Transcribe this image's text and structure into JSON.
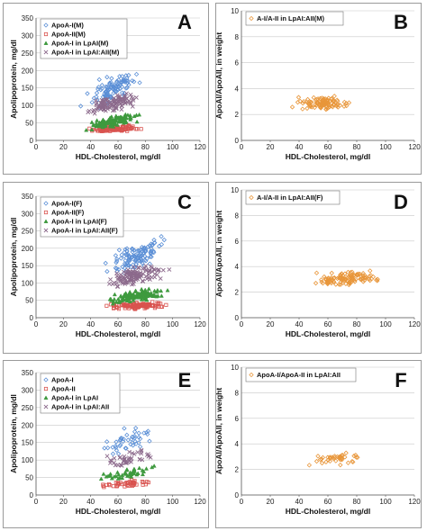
{
  "chart_data": [
    {
      "panel": "A",
      "type": "scatter",
      "xlabel": "HDL-Cholesterol, mg/dl",
      "ylabel": "Apolipoprotein, mg/dl",
      "xlim": [
        0,
        120
      ],
      "ylim": [
        0,
        350
      ],
      "xticks": [
        0,
        20,
        40,
        60,
        80,
        100,
        120
      ],
      "yticks": [
        0,
        50,
        100,
        150,
        200,
        250,
        300,
        350
      ],
      "legend_position": "top-left",
      "series": [
        {
          "name": "ApoA-I(M)",
          "color": "#5b8fd6",
          "marker": "diamond",
          "n": 110,
          "x_range": [
            22,
            90
          ],
          "y_at_x_min": 95,
          "y_slope": 1.5,
          "y_spread": 30,
          "seed": 11
        },
        {
          "name": "ApoA-II(M)",
          "color": "#d9534f",
          "marker": "square",
          "n": 110,
          "x_range": [
            22,
            90
          ],
          "y_at_x_min": 25,
          "y_slope": 0.22,
          "y_spread": 7,
          "seed": 12
        },
        {
          "name": "ApoA-I in LpAI(M)",
          "color": "#3e9a3e",
          "marker": "triangle",
          "n": 110,
          "x_range": [
            22,
            90
          ],
          "y_at_x_min": 28,
          "y_slope": 0.75,
          "y_spread": 12,
          "seed": 13
        },
        {
          "name": "ApoA-I in LpAI:AII(M)",
          "color": "#8c6a8c",
          "marker": "cross",
          "n": 110,
          "x_range": [
            22,
            90
          ],
          "y_at_x_min": 80,
          "y_slope": 0.75,
          "y_spread": 16,
          "seed": 14
        }
      ]
    },
    {
      "panel": "B",
      "type": "scatter",
      "xlabel": "HDL-Cholesterol, mg/dl",
      "ylabel": "ApoAI/ApoAII, in weight",
      "xlim": [
        0,
        120
      ],
      "ylim": [
        0,
        10
      ],
      "xticks": [
        0,
        20,
        40,
        60,
        80,
        100,
        120
      ],
      "yticks": [
        0,
        2,
        4,
        6,
        8,
        10
      ],
      "legend_position": "top-left",
      "series": [
        {
          "name": "A-I/A-II in LpAI:AII(M)",
          "color": "#e8963a",
          "marker": "diamond",
          "n": 110,
          "x_range": [
            25,
            88
          ],
          "y_at_x_min": 2.9,
          "y_slope": 0.0,
          "y_spread": 0.4,
          "seed": 15
        }
      ]
    },
    {
      "panel": "C",
      "type": "scatter",
      "xlabel": "HDL-Cholesterol, mg/dl",
      "ylabel": "Apolipoprotein, mg/dl",
      "xlim": [
        0,
        120
      ],
      "ylim": [
        0,
        350
      ],
      "xticks": [
        0,
        20,
        40,
        60,
        80,
        100,
        120
      ],
      "yticks": [
        0,
        50,
        100,
        150,
        200,
        250,
        300,
        350
      ],
      "legend_position": "top-left",
      "series": [
        {
          "name": "ApoA-I(F)",
          "color": "#5b8fd6",
          "marker": "diamond",
          "n": 120,
          "x_range": [
            35,
            112
          ],
          "y_at_x_min": 125,
          "y_slope": 1.3,
          "y_spread": 28,
          "seed": 21
        },
        {
          "name": "ApoA-II(F)",
          "color": "#d9534f",
          "marker": "square",
          "n": 120,
          "x_range": [
            35,
            112
          ],
          "y_at_x_min": 30,
          "y_slope": 0.12,
          "y_spread": 7,
          "seed": 22
        },
        {
          "name": "ApoA-I in LpAI(F)",
          "color": "#3e9a3e",
          "marker": "triangle",
          "n": 120,
          "x_range": [
            35,
            112
          ],
          "y_at_x_min": 40,
          "y_slope": 0.6,
          "y_spread": 12,
          "seed": 23
        },
        {
          "name": "ApoA-I in LpAI:AII(F)",
          "color": "#8c6a8c",
          "marker": "cross",
          "n": 120,
          "x_range": [
            35,
            112
          ],
          "y_at_x_min": 90,
          "y_slope": 0.75,
          "y_spread": 18,
          "seed": 24
        }
      ]
    },
    {
      "panel": "D",
      "type": "scatter",
      "xlabel": "HDL-Cholesterol, mg/dl",
      "ylabel": "ApoAI/ApoAII, in weight",
      "xlim": [
        0,
        120
      ],
      "ylim": [
        0,
        10
      ],
      "xticks": [
        0,
        20,
        40,
        60,
        80,
        100,
        120
      ],
      "yticks": [
        0,
        2,
        4,
        6,
        8,
        10
      ],
      "legend_position": "top-left",
      "series": [
        {
          "name": "A-I/A-II in LpAI:AII(F)",
          "color": "#e8963a",
          "marker": "diamond",
          "n": 120,
          "x_range": [
            33,
            112
          ],
          "y_at_x_min": 2.8,
          "y_slope": 0.006,
          "y_spread": 0.4,
          "seed": 25
        }
      ]
    },
    {
      "panel": "E",
      "type": "scatter",
      "xlabel": "HDL-Cholesterol, mg/dl",
      "ylabel": "Apolipoprotein, mg/dl",
      "xlim": [
        0,
        120
      ],
      "ylim": [
        0,
        350
      ],
      "xticks": [
        0,
        20,
        40,
        60,
        80,
        100,
        120
      ],
      "yticks": [
        0,
        50,
        100,
        150,
        200,
        250,
        300,
        350
      ],
      "legend_position": "top-left",
      "series": [
        {
          "name": "ApoA-I",
          "color": "#5b8fd6",
          "marker": "diamond",
          "n": 45,
          "x_range": [
            35,
            100
          ],
          "y_at_x_min": 110,
          "y_slope": 1.4,
          "y_spread": 28,
          "seed": 31
        },
        {
          "name": "ApoA-II",
          "color": "#d9534f",
          "marker": "square",
          "n": 45,
          "x_range": [
            35,
            100
          ],
          "y_at_x_min": 28,
          "y_slope": 0.15,
          "y_spread": 7,
          "seed": 32
        },
        {
          "name": "ApoA-I in LpAI",
          "color": "#3e9a3e",
          "marker": "triangle",
          "n": 45,
          "x_range": [
            35,
            100
          ],
          "y_at_x_min": 35,
          "y_slope": 0.8,
          "y_spread": 12,
          "seed": 33
        },
        {
          "name": "ApoA-I in LpAI:AII",
          "color": "#8c6a8c",
          "marker": "cross",
          "n": 45,
          "x_range": [
            35,
            100
          ],
          "y_at_x_min": 85,
          "y_slope": 0.6,
          "y_spread": 16,
          "seed": 34
        }
      ]
    },
    {
      "panel": "F",
      "type": "scatter",
      "xlabel": "HDL-Cholesterol, mg/dl",
      "ylabel": "ApoAI/ApoAII, in weight",
      "xlim": [
        0,
        120
      ],
      "ylim": [
        0,
        10
      ],
      "xticks": [
        0,
        20,
        40,
        60,
        80,
        100,
        120
      ],
      "yticks": [
        0,
        2,
        4,
        6,
        8,
        10
      ],
      "legend_position": "top-left",
      "series": [
        {
          "name": "ApoA-I/ApoA-II in LpAI:AII",
          "color": "#e8963a",
          "marker": "diamond",
          "n": 45,
          "x_range": [
            30,
            100
          ],
          "y_at_x_min": 2.8,
          "y_slope": 0.002,
          "y_spread": 0.35,
          "seed": 35
        }
      ]
    }
  ]
}
